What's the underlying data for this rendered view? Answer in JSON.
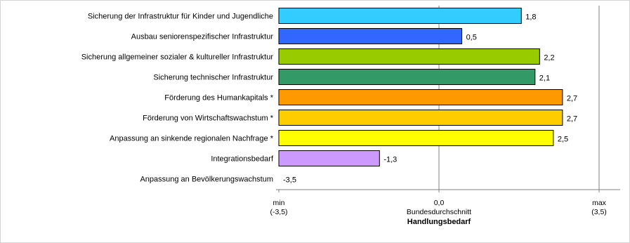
{
  "chart_data": {
    "type": "bar",
    "orientation": "horizontal",
    "title": "",
    "xlabel": "Handlungsbedarf",
    "xlim": [
      -3.5,
      3.5
    ],
    "categories": [
      "Sicherung der Infrastruktur für Kinder und Jugendliche",
      "Ausbau seniorenspezifischer Infrastruktur",
      "Sicherung allgemeiner sozialer & kultureller Infrastruktur",
      "Sicherung technischer Infrastruktur",
      "Förderung des Humankapitals *",
      "Förderung von Wirtschaftswachstum *",
      "Anpassung an sinkende regionalen Nachfrage *",
      "Integrationsbedarf",
      "Anpassung an Bevölkerungswachstum"
    ],
    "values": [
      1.8,
      0.5,
      2.2,
      2.1,
      2.7,
      2.7,
      2.5,
      -1.3,
      -3.5
    ],
    "value_labels": [
      "1,8",
      "0,5",
      "2,2",
      "2,1",
      "2,7",
      "2,7",
      "2,5",
      "-1,3",
      "-3,5"
    ],
    "colors": [
      "#33ccff",
      "#3366ff",
      "#99cc00",
      "#339966",
      "#ff9900",
      "#ffcc00",
      "#ffff00",
      "#cc99ff",
      "#c0c0c0"
    ],
    "axis_ticks": [
      {
        "value": -3.5,
        "line1": "min",
        "line2": "(-3,5)"
      },
      {
        "value": 0,
        "line1": "0,0",
        "line2": "Bundesdurchschnitt"
      },
      {
        "value": 3.5,
        "line1": "max",
        "line2": "(3,5)"
      }
    ],
    "grid": {
      "vertical_lines_at": [
        0,
        3.5
      ]
    },
    "legend": "none"
  }
}
